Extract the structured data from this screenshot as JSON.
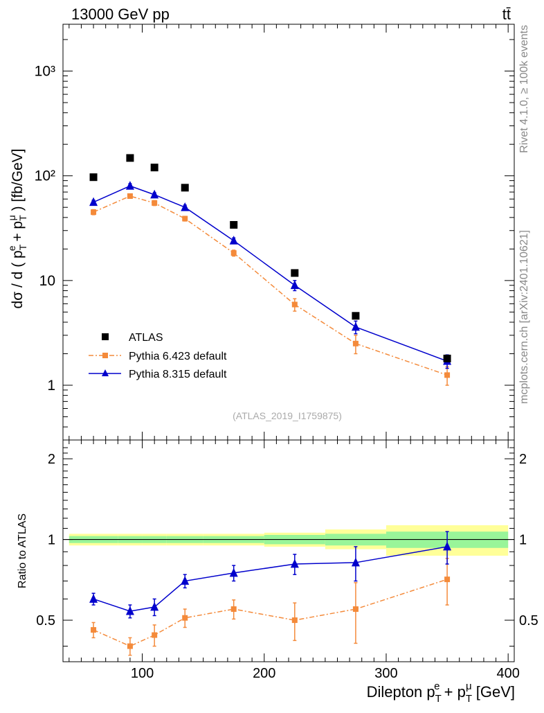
{
  "header": {
    "energy_label": "13000 GeV pp",
    "process_label": "tt̄"
  },
  "side_labels": {
    "rivet": "Rivet 4.1.0, ≥ 100k events",
    "mcplots": "mcplots.cern.ch [arXiv:2401.10621]"
  },
  "watermark": "(ATLAS_2019_I1759875)",
  "colors": {
    "data": "#000000",
    "pythia6": "#f48a3a",
    "pythia8": "#0000cc",
    "band_inner": "#99f599",
    "band_outer": "#ffff99"
  },
  "chart_data": [
    {
      "type": "scatter",
      "panel": "main",
      "title": "",
      "xlabel": "Dilepton p_T^e + p_T^μ [GeV]",
      "ylabel": "dσ / d ( p_T^e + p_T^μ ) [fb/GeV]",
      "xlim": [
        35,
        405
      ],
      "ylim": [
        0.3,
        2800
      ],
      "yscale": "log",
      "y_tick_labels": [
        "1",
        "10",
        "10²",
        "10³"
      ],
      "x": [
        60,
        90,
        110,
        135,
        175,
        225,
        275,
        350
      ],
      "series": [
        {
          "name": "ATLAS",
          "marker": "square",
          "values": [
            97,
            148,
            120,
            77,
            34,
            11.8,
            4.6,
            1.8
          ],
          "x_err_bins": [
            [
              40,
              80
            ],
            [
              80,
              100
            ],
            [
              100,
              120
            ],
            [
              120,
              150
            ],
            [
              150,
              200
            ],
            [
              200,
              250
            ],
            [
              250,
              300
            ],
            [
              300,
              400
            ]
          ]
        },
        {
          "name": "Pythia 6.423 default",
          "marker": "square",
          "style": "dash-dot",
          "values": [
            45,
            64,
            55,
            39,
            18.3,
            5.9,
            2.5,
            1.25
          ],
          "yerr": [
            2.5,
            3,
            3,
            2,
            1.2,
            0.8,
            0.5,
            0.25
          ]
        },
        {
          "name": "Pythia 8.315 default",
          "marker": "triangle",
          "style": "solid",
          "values": [
            56,
            80,
            66,
            50,
            24,
            9,
            3.6,
            1.7
          ],
          "yerr": [
            2.5,
            4,
            3,
            2.5,
            1.5,
            1,
            0.5,
            0.25
          ]
        }
      ],
      "legend": [
        "ATLAS",
        "Pythia 6.423 default",
        "Pythia 8.315 default"
      ],
      "legend_position": "lower-left"
    },
    {
      "type": "scatter",
      "panel": "ratio",
      "xlabel": "Dilepton p_T^e + p_T^μ [GeV]",
      "ylabel": "Ratio to ATLAS",
      "xlim": [
        35,
        405
      ],
      "ylim": [
        0.35,
        2.35
      ],
      "yscale": "log",
      "x_tick_labels": [
        "100",
        "200",
        "300",
        "400"
      ],
      "y_tick_labels": [
        "0.5",
        "1",
        "2"
      ],
      "x": [
        60,
        90,
        110,
        135,
        175,
        225,
        275,
        350
      ],
      "bands": {
        "bin_edges": [
          40,
          80,
          100,
          120,
          150,
          200,
          250,
          300,
          400
        ],
        "inner_lo": [
          0.97,
          0.97,
          0.97,
          0.97,
          0.97,
          0.96,
          0.95,
          0.93
        ],
        "inner_hi": [
          1.03,
          1.03,
          1.03,
          1.03,
          1.03,
          1.04,
          1.05,
          1.07
        ],
        "outer_lo": [
          0.95,
          0.95,
          0.95,
          0.95,
          0.95,
          0.94,
          0.92,
          0.87
        ],
        "outer_hi": [
          1.05,
          1.05,
          1.05,
          1.05,
          1.05,
          1.06,
          1.09,
          1.13
        ]
      },
      "series": [
        {
          "name": "Pythia 6.423 default",
          "marker": "square",
          "style": "dash-dot",
          "values": [
            0.46,
            0.4,
            0.44,
            0.51,
            0.55,
            0.5,
            0.55,
            0.71
          ],
          "yerr": [
            0.03,
            0.03,
            0.04,
            0.04,
            0.045,
            0.08,
            0.14,
            0.14
          ]
        },
        {
          "name": "Pythia 8.315 default",
          "marker": "triangle",
          "style": "solid",
          "values": [
            0.6,
            0.54,
            0.56,
            0.7,
            0.75,
            0.81,
            0.82,
            0.94
          ],
          "yerr": [
            0.03,
            0.03,
            0.04,
            0.04,
            0.05,
            0.07,
            0.12,
            0.13
          ]
        }
      ]
    }
  ]
}
